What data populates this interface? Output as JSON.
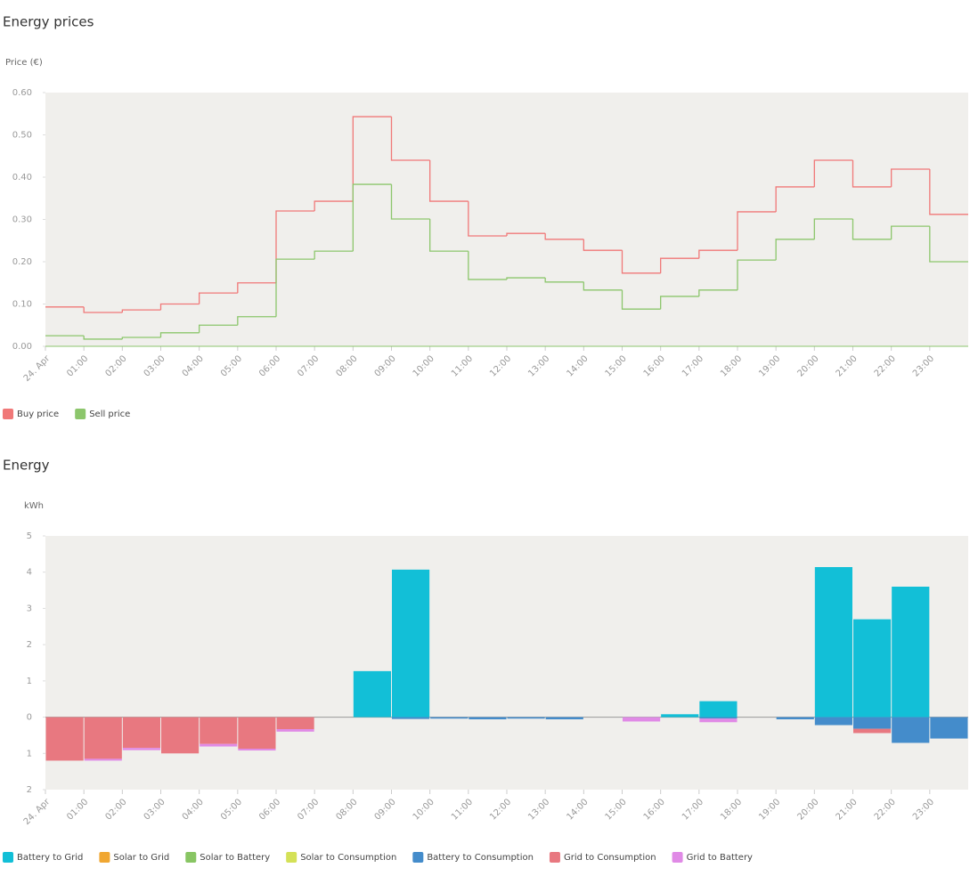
{
  "chart_data": [
    {
      "type": "line",
      "step": true,
      "title": "Energy prices",
      "y_label": "Price (€)",
      "categories": [
        "24. Apr",
        "01:00",
        "02:00",
        "03:00",
        "04:00",
        "05:00",
        "06:00",
        "07:00",
        "08:00",
        "09:00",
        "10:00",
        "11:00",
        "12:00",
        "13:00",
        "14:00",
        "15:00",
        "16:00",
        "17:00",
        "18:00",
        "19:00",
        "20:00",
        "21:00",
        "22:00",
        "23:00"
      ],
      "series": [
        {
          "name": "Buy price",
          "color": "#f07878",
          "values": [
            0.093,
            0.08,
            0.086,
            0.1,
            0.126,
            0.15,
            0.32,
            0.343,
            0.543,
            0.44,
            0.343,
            0.261,
            0.267,
            0.253,
            0.227,
            0.173,
            0.208,
            0.227,
            0.318,
            0.377,
            0.44,
            0.377,
            0.419,
            0.312
          ]
        },
        {
          "name": "Sell price",
          "color": "#8cc66c",
          "values": [
            0.025,
            0.017,
            0.021,
            0.032,
            0.05,
            0.07,
            0.206,
            0.225,
            0.383,
            0.301,
            0.225,
            0.158,
            0.162,
            0.152,
            0.133,
            0.088,
            0.118,
            0.133,
            0.204,
            0.253,
            0.301,
            0.253,
            0.284,
            0.2
          ]
        }
      ],
      "ylim": [
        0,
        0.6
      ],
      "yticks": [
        {
          "value": 0,
          "label": "0.00"
        },
        {
          "value": 0.1,
          "label": "0.10"
        },
        {
          "value": 0.2,
          "label": "0.20"
        },
        {
          "value": 0.3,
          "label": "0.30"
        },
        {
          "value": 0.4,
          "label": "0.40"
        },
        {
          "value": 0.5,
          "label": "0.50"
        },
        {
          "value": 0.6,
          "label": "0.60"
        }
      ]
    },
    {
      "type": "bar",
      "stacked": true,
      "title": "Energy",
      "y_label": "kWh",
      "categories": [
        "24. Apr",
        "01:00",
        "02:00",
        "03:00",
        "04:00",
        "05:00",
        "06:00",
        "07:00",
        "08:00",
        "09:00",
        "10:00",
        "11:00",
        "12:00",
        "13:00",
        "14:00",
        "15:00",
        "16:00",
        "17:00",
        "18:00",
        "19:00",
        "20:00",
        "21:00",
        "22:00",
        "23:00"
      ],
      "series": [
        {
          "name": "Battery to Grid",
          "color": "#12bfd7",
          "values": [
            0,
            0,
            0,
            0,
            0,
            0,
            0,
            0,
            1.27,
            4.07,
            0,
            0,
            0,
            0,
            0,
            0,
            0.08,
            0.44,
            0,
            0,
            4.14,
            2.7,
            3.6,
            0
          ]
        },
        {
          "name": "Solar to Grid",
          "color": "#f0a732",
          "values": [
            0,
            0,
            0,
            0,
            0,
            0,
            0,
            0,
            0,
            0,
            0,
            0,
            0,
            0,
            0,
            0,
            0,
            0,
            0,
            0,
            0,
            0,
            0,
            0
          ]
        },
        {
          "name": "Solar to Battery",
          "color": "#88c563",
          "values": [
            0,
            0,
            0,
            0,
            0,
            0,
            0,
            0,
            0,
            0,
            0,
            0,
            0,
            0,
            0,
            0,
            0,
            0,
            0,
            0,
            0,
            0,
            0,
            0
          ]
        },
        {
          "name": "Solar to Consumption",
          "color": "#d4e157",
          "values": [
            0,
            0,
            0,
            0,
            0,
            0,
            0,
            0,
            0,
            0,
            0,
            0,
            0,
            0,
            0,
            0,
            0,
            0,
            0,
            0,
            0,
            0,
            0,
            0
          ]
        },
        {
          "name": "Battery to Consumption",
          "color": "#448ccb",
          "values": [
            0,
            0,
            0,
            0,
            0,
            0,
            0,
            0,
            0,
            -0.05,
            -0.04,
            -0.06,
            -0.04,
            -0.06,
            0,
            0,
            0,
            -0.04,
            0,
            -0.06,
            -0.22,
            -0.32,
            -0.71,
            -0.59
          ]
        },
        {
          "name": "Grid to Consumption",
          "color": "#e87880",
          "values": [
            -1.2,
            -1.15,
            -0.85,
            -1.0,
            -0.74,
            -0.87,
            -0.33,
            0,
            0,
            0,
            0,
            0,
            0,
            0,
            0,
            0,
            0,
            0,
            0,
            0,
            0,
            -0.12,
            0,
            0
          ]
        },
        {
          "name": "Grid to Battery",
          "color": "#e08ae6",
          "values": [
            0,
            -0.05,
            -0.06,
            0,
            -0.07,
            -0.05,
            -0.07,
            0,
            0,
            0,
            0,
            0,
            0,
            0,
            0,
            -0.12,
            0,
            -0.1,
            0,
            0,
            0,
            0,
            0,
            0
          ]
        }
      ],
      "ylim": [
        -2,
        5
      ],
      "yticks": [
        {
          "value": -2,
          "label": "2"
        },
        {
          "value": -1,
          "label": "1"
        },
        0,
        1,
        2,
        3,
        4,
        5
      ]
    }
  ]
}
